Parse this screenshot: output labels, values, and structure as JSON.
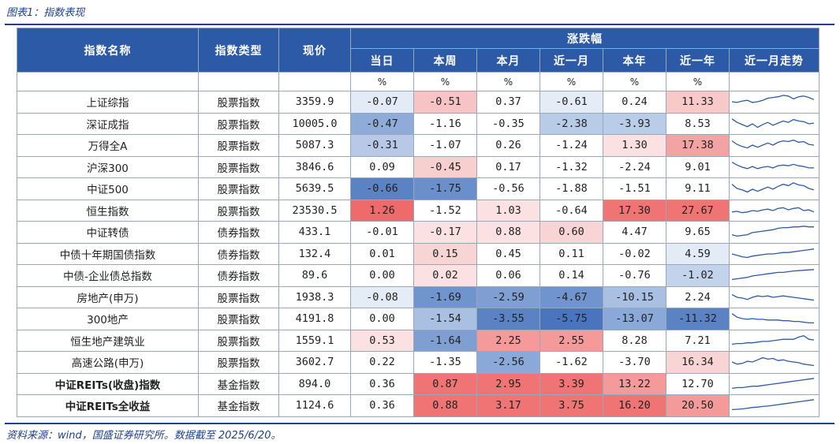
{
  "caption": "图表1：指数表现",
  "source": "资料来源：wind，国盛证券研究所。数据截至 2025/6/20。",
  "headers": {
    "name": "指数名称",
    "type": "指数类型",
    "price": "现价",
    "change_group": "涨跌幅",
    "periods": [
      "当日",
      "本周",
      "本月",
      "近一月",
      "本年",
      "近一年"
    ],
    "trend": "近一月走势",
    "unit": "%"
  },
  "rows": [
    {
      "name": "上证综指",
      "type": "股票指数",
      "price": "3359.9",
      "values": [
        "-0.07",
        "-0.51",
        "0.37",
        "-0.61",
        "0.24",
        "11.33"
      ],
      "colors": [
        "#e3ebf6",
        "#f6c4c4",
        "#ffffff",
        "#e4ecf6",
        "#ffffff",
        "#f7c9c9"
      ],
      "trend": [
        0.5,
        0.45,
        0.55,
        0.6,
        0.45,
        0.5,
        0.6,
        0.75,
        0.8,
        0.85,
        0.95,
        0.9,
        0.7,
        0.85,
        0.9,
        0.8,
        0.65
      ],
      "bold": false
    },
    {
      "name": "深证成指",
      "type": "股票指数",
      "price": "10005.0",
      "values": [
        "-0.47",
        "-1.16",
        "-0.35",
        "-2.38",
        "-3.93",
        "8.53"
      ],
      "colors": [
        "#8facd8",
        "#ffffff",
        "#ffffff",
        "#b8cbe7",
        "#b9cce8",
        "#ffffff"
      ],
      "trend": [
        0.85,
        0.6,
        0.45,
        0.3,
        0.5,
        0.25,
        0.45,
        0.6,
        0.4,
        0.55,
        0.7,
        0.6,
        0.8,
        0.7,
        0.65,
        0.5,
        0.55
      ],
      "bold": false
    },
    {
      "name": "万得全A",
      "type": "股票指数",
      "price": "5087.3",
      "values": [
        "-0.31",
        "-1.07",
        "0.26",
        "-1.24",
        "1.30",
        "17.38"
      ],
      "colors": [
        "#b7c9e7",
        "#ffffff",
        "#ffffff",
        "#ffffff",
        "#fbe1e1",
        "#f3a3a3"
      ],
      "trend": [
        0.8,
        0.55,
        0.4,
        0.3,
        0.5,
        0.35,
        0.5,
        0.65,
        0.5,
        0.7,
        0.8,
        0.75,
        0.85,
        0.7,
        0.75,
        0.55,
        0.5
      ],
      "bold": false
    },
    {
      "name": "沪深300",
      "type": "股票指数",
      "price": "3846.6",
      "values": [
        "0.09",
        "-0.45",
        "0.17",
        "-1.32",
        "-2.24",
        "9.01"
      ],
      "colors": [
        "#ffffff",
        "#f8cfcf",
        "#ffffff",
        "#ffffff",
        "#ffffff",
        "#ffffff"
      ],
      "trend": [
        0.85,
        0.65,
        0.5,
        0.4,
        0.55,
        0.4,
        0.5,
        0.55,
        0.45,
        0.6,
        0.65,
        0.6,
        0.7,
        0.6,
        0.55,
        0.45,
        0.45
      ],
      "bold": false
    },
    {
      "name": "中证500",
      "type": "股票指数",
      "price": "5639.5",
      "values": [
        "-0.66",
        "-1.75",
        "-0.56",
        "-1.88",
        "-1.51",
        "9.11"
      ],
      "colors": [
        "#5b82c3",
        "#6b8fcb",
        "#ffffff",
        "#ffffff",
        "#ffffff",
        "#ffffff"
      ],
      "trend": [
        0.8,
        0.5,
        0.4,
        0.25,
        0.45,
        0.3,
        0.45,
        0.6,
        0.45,
        0.65,
        0.8,
        0.7,
        0.9,
        0.75,
        0.7,
        0.5,
        0.4
      ],
      "bold": false
    },
    {
      "name": "恒生指数",
      "type": "股票指数",
      "price": "23530.5",
      "values": [
        "1.26",
        "-1.52",
        "1.03",
        "-0.64",
        "17.30",
        "27.67"
      ],
      "colors": [
        "#ef6b6b",
        "#ffffff",
        "#fbe1e1",
        "#ffffff",
        "#f07474",
        "#f07474"
      ],
      "trend": [
        0.4,
        0.45,
        0.35,
        0.4,
        0.5,
        0.45,
        0.55,
        0.6,
        0.5,
        0.65,
        0.7,
        0.55,
        0.65,
        0.7,
        0.5,
        0.55,
        0.4
      ],
      "bold": false
    },
    {
      "name": "中证转债",
      "type": "债券指数",
      "price": "433.1",
      "values": [
        "-0.01",
        "-0.17",
        "0.88",
        "0.60",
        "4.47",
        "9.65"
      ],
      "colors": [
        "#ffffff",
        "#fbe1e1",
        "#fbe1e1",
        "#f8d4d4",
        "#ffffff",
        "#ffffff"
      ],
      "trend": [
        0.3,
        0.2,
        0.25,
        0.3,
        0.45,
        0.5,
        0.55,
        0.6,
        0.65,
        0.75,
        0.8,
        0.8,
        0.85,
        0.85,
        0.9,
        0.85,
        0.85
      ],
      "bold": false
    },
    {
      "name": "中债十年期国债指数",
      "type": "债券指数",
      "price": "132.4",
      "values": [
        "0.01",
        "0.15",
        "0.45",
        "0.11",
        "-0.02",
        "4.59"
      ],
      "colors": [
        "#ffffff",
        "#f8d4d4",
        "#ffffff",
        "#ffffff",
        "#ffffff",
        "#e3ebf6"
      ],
      "trend": [
        0.5,
        0.4,
        0.3,
        0.25,
        0.35,
        0.4,
        0.45,
        0.5,
        0.5,
        0.55,
        0.6,
        0.6,
        0.65,
        0.7,
        0.75,
        0.8,
        0.85
      ],
      "bold": false
    },
    {
      "name": "中债-企业债总指数",
      "type": "债券指数",
      "price": "89.6",
      "values": [
        "0.00",
        "0.02",
        "0.06",
        "0.14",
        "-0.76",
        "-1.02"
      ],
      "colors": [
        "#ffffff",
        "#fbe1e1",
        "#ffffff",
        "#ffffff",
        "#ffffff",
        "#c3d3eb"
      ],
      "trend": [
        0.2,
        0.25,
        0.3,
        0.35,
        0.45,
        0.5,
        0.55,
        0.6,
        0.65,
        0.7,
        0.7,
        0.75,
        0.8,
        0.82,
        0.85,
        0.88,
        0.9
      ],
      "bold": false
    },
    {
      "name": "房地产(申万)",
      "type": "股票指数",
      "price": "1938.3",
      "values": [
        "-0.08",
        "-1.69",
        "-2.59",
        "-4.67",
        "-10.15",
        "2.24"
      ],
      "colors": [
        "#e4ecf6",
        "#7094cd",
        "#7f9fd2",
        "#7094cd",
        "#a9c0e3",
        "#ffffff"
      ],
      "trend": [
        0.7,
        0.5,
        0.45,
        0.35,
        0.5,
        0.6,
        0.55,
        0.6,
        0.5,
        0.55,
        0.6,
        0.55,
        0.5,
        0.45,
        0.4,
        0.35,
        0.3
      ],
      "bold": false
    },
    {
      "name": "300地产",
      "type": "股票指数",
      "price": "4191.8",
      "values": [
        "0.00",
        "-1.54",
        "-3.55",
        "-5.75",
        "-13.07",
        "-11.32"
      ],
      "colors": [
        "#ffffff",
        "#a9c0e3",
        "#5b82c3",
        "#4a74bd",
        "#8aa9d8",
        "#5b82c3"
      ],
      "trend": [
        0.85,
        0.6,
        0.5,
        0.45,
        0.5,
        0.45,
        0.45,
        0.4,
        0.4,
        0.4,
        0.35,
        0.35,
        0.3,
        0.3,
        0.25,
        0.2,
        0.2
      ],
      "bold": false
    },
    {
      "name": "恒生地产建筑业",
      "type": "股票指数",
      "price": "1559.1",
      "values": [
        "0.53",
        "-1.64",
        "2.25",
        "2.55",
        "8.28",
        "7.21"
      ],
      "colors": [
        "#fbe1e1",
        "#7f9fd2",
        "#f49a9a",
        "#f49a9a",
        "#ffffff",
        "#ffffff"
      ],
      "trend": [
        0.25,
        0.3,
        0.3,
        0.35,
        0.35,
        0.4,
        0.45,
        0.45,
        0.5,
        0.55,
        0.6,
        0.6,
        0.6,
        0.75,
        0.85,
        0.6,
        0.55
      ],
      "bold": false
    },
    {
      "name": "高速公路(申万)",
      "type": "股票指数",
      "price": "3602.7",
      "values": [
        "0.22",
        "-1.35",
        "-2.56",
        "-1.62",
        "-3.70",
        "16.34"
      ],
      "colors": [
        "#ffffff",
        "#ffffff",
        "#8aa9d8",
        "#ffffff",
        "#ffffff",
        "#f8d4d4"
      ],
      "trend": [
        0.5,
        0.35,
        0.4,
        0.55,
        0.5,
        0.65,
        0.8,
        0.7,
        0.75,
        0.6,
        0.65,
        0.55,
        0.5,
        0.45,
        0.35,
        0.3,
        0.25
      ],
      "bold": false
    },
    {
      "name": "中证REITs(收盘)指数",
      "type": "基金指数",
      "price": "894.0",
      "values": [
        "0.36",
        "0.87",
        "2.95",
        "3.39",
        "13.22",
        "12.70"
      ],
      "colors": [
        "#ffffff",
        "#f07474",
        "#f07474",
        "#f07474",
        "#f49a9a",
        "#ffffff"
      ],
      "trend": [
        0.2,
        0.25,
        0.25,
        0.3,
        0.35,
        0.35,
        0.4,
        0.45,
        0.5,
        0.55,
        0.6,
        0.65,
        0.7,
        0.75,
        0.8,
        0.85,
        0.9
      ],
      "bold": true
    },
    {
      "name": "中证REITs全收益",
      "type": "基金指数",
      "price": "1124.6",
      "values": [
        "0.36",
        "0.88",
        "3.17",
        "3.75",
        "16.20",
        "20.50"
      ],
      "colors": [
        "#ffffff",
        "#f07474",
        "#f07474",
        "#f07474",
        "#f07474",
        "#f49a9a"
      ],
      "trend": [
        0.2,
        0.22,
        0.25,
        0.3,
        0.35,
        0.38,
        0.42,
        0.45,
        0.5,
        0.55,
        0.6,
        0.65,
        0.7,
        0.75,
        0.8,
        0.85,
        0.9
      ],
      "bold": true
    }
  ]
}
